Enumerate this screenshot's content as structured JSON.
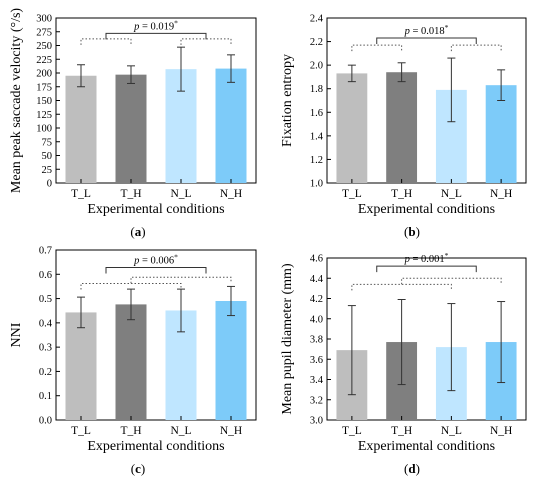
{
  "colors": {
    "T_L": "#bebebe",
    "T_H": "#7f7f7f",
    "N_L": "#bfe6ff",
    "N_H": "#7dcbf9"
  },
  "chart_data": [
    {
      "type": "bar",
      "panel_label": "(a)",
      "categories": [
        "T_L",
        "T_H",
        "N_L",
        "N_H"
      ],
      "values": [
        195,
        197,
        207,
        208
      ],
      "errors": [
        20,
        16,
        40,
        25
      ],
      "xlabel": "Experimental conditions",
      "ylabel": "Mean peak saccade velocity (°/s)",
      "ylim": [
        0,
        300
      ],
      "yticks": [
        0,
        25,
        50,
        75,
        100,
        125,
        150,
        175,
        200,
        225,
        250,
        275,
        300
      ],
      "yticklabels": [
        "0",
        "25",
        "50",
        "75",
        "100",
        "125",
        "150",
        "175",
        "200",
        "225",
        "250",
        "275",
        "300"
      ],
      "annotation": {
        "p_text": "p",
        "rest_text": " = 0.019",
        "star": "*"
      },
      "brackets": [
        {
          "from": 0,
          "to": 1,
          "y": 262,
          "style": "dotted"
        },
        {
          "from": 2,
          "to": 3,
          "y": 262,
          "style": "dotted"
        },
        {
          "from": 0.5,
          "to": 2.5,
          "y": 272,
          "style": "solid"
        }
      ]
    },
    {
      "type": "bar",
      "panel_label": "(b)",
      "categories": [
        "T_L",
        "T_H",
        "N_L",
        "N_H"
      ],
      "values": [
        1.93,
        1.94,
        1.79,
        1.83
      ],
      "errors": [
        0.07,
        0.08,
        0.27,
        0.13
      ],
      "xlabel": "Experimental conditions",
      "ylabel": "Fixation entropy",
      "ylim": [
        1.0,
        2.4
      ],
      "yticks": [
        1.0,
        1.2,
        1.4,
        1.6,
        1.8,
        2.0,
        2.2,
        2.4
      ],
      "yticklabels": [
        "1.0",
        "1.2",
        "1.4",
        "1.6",
        "1.8",
        "2.0",
        "2.2",
        "2.4"
      ],
      "annotation": {
        "p_text": "p",
        "rest_text": " = 0.018",
        "star": "*"
      },
      "brackets": [
        {
          "from": 0,
          "to": 1,
          "y": 2.17,
          "style": "dotted"
        },
        {
          "from": 2,
          "to": 3,
          "y": 2.17,
          "style": "dotted"
        },
        {
          "from": 0.5,
          "to": 2.5,
          "y": 2.23,
          "style": "solid"
        }
      ]
    },
    {
      "type": "bar",
      "panel_label": "(c)",
      "categories": [
        "T_L",
        "T_H",
        "N_L",
        "N_H"
      ],
      "values": [
        0.443,
        0.476,
        0.451,
        0.49
      ],
      "errors": [
        0.063,
        0.063,
        0.088,
        0.06
      ],
      "xlabel": "Experimental conditions",
      "ylabel": "NNI",
      "ylim": [
        0.0,
        0.7
      ],
      "yticks": [
        0.0,
        0.1,
        0.2,
        0.3,
        0.4,
        0.5,
        0.6,
        0.7
      ],
      "yticklabels": [
        "0.0",
        "0.1",
        "0.2",
        "0.3",
        "0.4",
        "0.5",
        "0.6",
        "0.7"
      ],
      "annotation": {
        "p_text": "p",
        "rest_text": " = 0.006",
        "star": "*"
      },
      "brackets": [
        {
          "from": 0,
          "to": 2,
          "y": 0.562,
          "style": "dotted"
        },
        {
          "from": 1,
          "to": 3,
          "y": 0.588,
          "style": "dotted"
        },
        {
          "from": 0.5,
          "to": 2.5,
          "y": 0.628,
          "style": "solid"
        }
      ]
    },
    {
      "type": "bar",
      "panel_label": "(d)",
      "categories": [
        "T_L",
        "T_H",
        "N_L",
        "N_H"
      ],
      "values": [
        3.69,
        3.77,
        3.72,
        3.77
      ],
      "errors": [
        0.44,
        0.42,
        0.43,
        0.4
      ],
      "xlabel": "Experimental conditions",
      "ylabel": "Mean pupil diameter (mm)",
      "ylim": [
        3.0,
        4.6
      ],
      "yticks": [
        3.0,
        3.2,
        3.4,
        3.6,
        3.8,
        4.0,
        4.2,
        4.4,
        4.6
      ],
      "yticklabels": [
        "3.0",
        "3.2",
        "3.4",
        "3.6",
        "3.8",
        "4.0",
        "4.2",
        "4.4",
        "4.6"
      ],
      "annotation": {
        "p_text": "p",
        "rest_text": " = 0.001",
        "star": "*"
      },
      "brackets": [
        {
          "from": 0,
          "to": 2,
          "y": 4.34,
          "style": "dotted"
        },
        {
          "from": 1,
          "to": 3,
          "y": 4.4,
          "style": "dotted"
        },
        {
          "from": 0.5,
          "to": 2.5,
          "y": 4.52,
          "style": "solid"
        }
      ]
    }
  ]
}
